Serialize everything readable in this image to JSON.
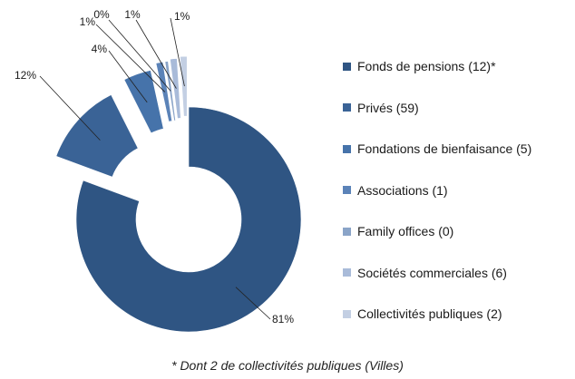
{
  "chart_data": {
    "type": "pie",
    "title": "",
    "categories": [
      "Fonds de pensions (12)*",
      "Privés (59)",
      "Fondations de bienfaisance (5)",
      "Associations (1)",
      "Family offices (0)",
      "Sociétés commerciales (6)",
      "Collectivités publiques (2)"
    ],
    "values": [
      81,
      12,
      4,
      1,
      0,
      1,
      1
    ],
    "data_labels": [
      "81%",
      "12%",
      "4%",
      "1%",
      "0%",
      "1%",
      "1%"
    ],
    "colors": [
      "#2f5583",
      "#3a6396",
      "#4673aa",
      "#5b83b8",
      "#8aa4c8",
      "#a9bbd9",
      "#c3cfe3"
    ],
    "legend_position": "right",
    "style": "exploded-doughnut"
  },
  "footnote": "* Dont 2 de collectivités publiques (Villes)"
}
